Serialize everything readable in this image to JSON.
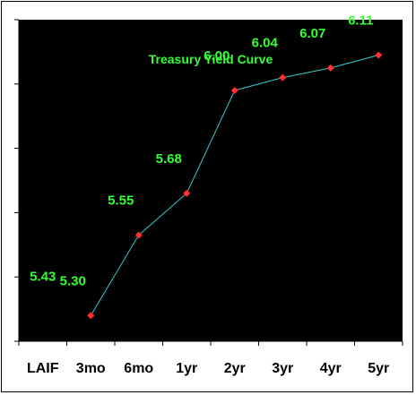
{
  "chart_data": {
    "type": "line",
    "title": "Treasury Yield Curve",
    "categories": [
      "LAIF",
      "3mo",
      "6mo",
      "1yr",
      "2yr",
      "3yr",
      "4yr",
      "5yr"
    ],
    "series": [
      {
        "name": "Treasury Yield",
        "values": [
          null,
          5.3,
          5.55,
          5.68,
          6.0,
          6.04,
          6.07,
          6.11
        ]
      }
    ],
    "data_labels": [
      "5.43",
      "5.30",
      "5.55",
      "5.68",
      "6.00",
      "6.04",
      "6.07",
      "6.11"
    ],
    "laif_value": 5.43,
    "ylim": [
      5.22,
      6.22
    ],
    "yticks": [
      5.22,
      5.42,
      5.62,
      5.82,
      6.02,
      6.22
    ],
    "grid": false,
    "legend": "none",
    "colors": {
      "plot_background": "#000000",
      "line": "#33cccc",
      "marker": "#ff3333",
      "label_text": "#33ff33",
      "title_text": "#33ff33"
    }
  }
}
